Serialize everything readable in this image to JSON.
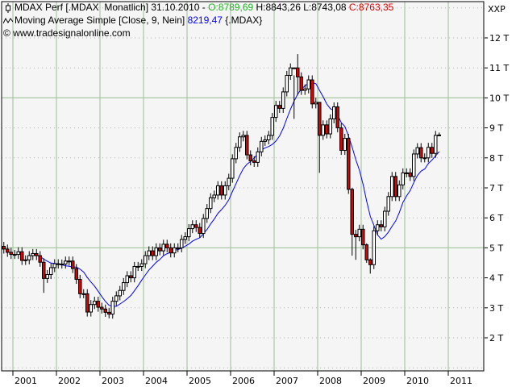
{
  "header": {
    "line1": {
      "title": "MDAX Perf [.MDAX  Monatlich] 31.10.2010 - ",
      "open": "O:8789,69",
      "high_low": " H:8843,26 L:8743,08 ",
      "close": "C:8763,35"
    },
    "line2": {
      "title": "Moving Average Simple [Close, 9, Nein] ",
      "value": "8219,47",
      "suffix": " {.MDAX}"
    },
    "line3": "© www.tradesignalonline.com",
    "icons": [
      "candlestick-icon",
      "moving-average-icon"
    ]
  },
  "colors": {
    "open": "#22b422",
    "close": "#e00000",
    "ma": "#0000ff",
    "up_candle": "#ffffff",
    "down_candle": "#e00000",
    "grid_major": "#a8c8a4",
    "grid_minor": "#b0b0b0",
    "plot_bg": "#f5f5f5"
  },
  "chart_data": {
    "type": "candlestick",
    "title": "MDAX Perf [.MDAX Monatlich]",
    "axis_unit_label": "XXP",
    "interval": "monthly",
    "start": "2000-10",
    "end": "2010-10",
    "ylim": [
      1000,
      13000
    ],
    "y_ticks": [
      2000,
      3000,
      4000,
      5000,
      6000,
      7000,
      8000,
      9000,
      10000,
      11000,
      12000
    ],
    "y_tick_labels": [
      "2 T",
      "3 T",
      "4 T",
      "5 T",
      "6 T",
      "7 T",
      "8 T",
      "9 T",
      "10 T",
      "11 T",
      "12 T"
    ],
    "x_tick_labels": [
      "2001",
      "2002",
      "2003",
      "2004",
      "2005",
      "2006",
      "2007",
      "2008",
      "2009",
      "2010",
      "2011"
    ],
    "solid_gridlines_y": [
      5000,
      10000
    ],
    "first_open": 5050,
    "close": [
      4960,
      4850,
      4780,
      4780,
      4870,
      4580,
      4600,
      4740,
      4810,
      4740,
      4520,
      3980,
      4110,
      4340,
      4470,
      4460,
      4460,
      4560,
      4560,
      4310,
      3950,
      3470,
      3470,
      2860,
      3110,
      3220,
      3020,
      2960,
      2850,
      2790,
      3220,
      3400,
      3580,
      3840,
      4070,
      4000,
      4380,
      4380,
      4470,
      4740,
      4900,
      4740,
      5000,
      4900,
      5120,
      5000,
      4830,
      5000,
      5000,
      5280,
      5370,
      5640,
      5770,
      5680,
      5480,
      5980,
      6310,
      6670,
      6760,
      7070,
      6760,
      7070,
      7320,
      7970,
      8350,
      8700,
      8750,
      8100,
      7900,
      7850,
      8200,
      8550,
      8600,
      8750,
      9350,
      9750,
      9650,
      10200,
      10750,
      11000,
      11000,
      10700,
      10250,
      10300,
      10600,
      9800,
      9850,
      8750,
      9100,
      8800,
      9300,
      9700,
      9000,
      8250,
      8650,
      6950,
      5450,
      5370,
      5620,
      5100,
      4600,
      4440,
      5570,
      5770,
      5700,
      6220,
      6710,
      7380,
      6710,
      7100,
      7500,
      7500,
      7380,
      8130,
      8340,
      8000,
      8000,
      8350,
      8150,
      8750,
      8763.35
    ],
    "default_wick": 150,
    "wick_overrides": {
      "11": [
        4650,
        3500
      ],
      "29": [
        3000,
        2650
      ],
      "80": [
        10750,
        9300
      ],
      "81": [
        11460,
        10100
      ],
      "87": [
        9850,
        7500
      ],
      "96": [
        7000,
        4740
      ],
      "97": [
        5600,
        4600
      ],
      "100": [
        5150,
        4500
      ],
      "101": [
        4650,
        4140
      ],
      "120": [
        8843.26,
        8743.08
      ]
    },
    "series": [
      {
        "name": "MDAX Perf",
        "type": "candlestick"
      },
      {
        "name": "Moving Average Simple [Close, 9, Nein]",
        "type": "line",
        "period": 9,
        "last_value": 8219.47
      }
    ]
  }
}
